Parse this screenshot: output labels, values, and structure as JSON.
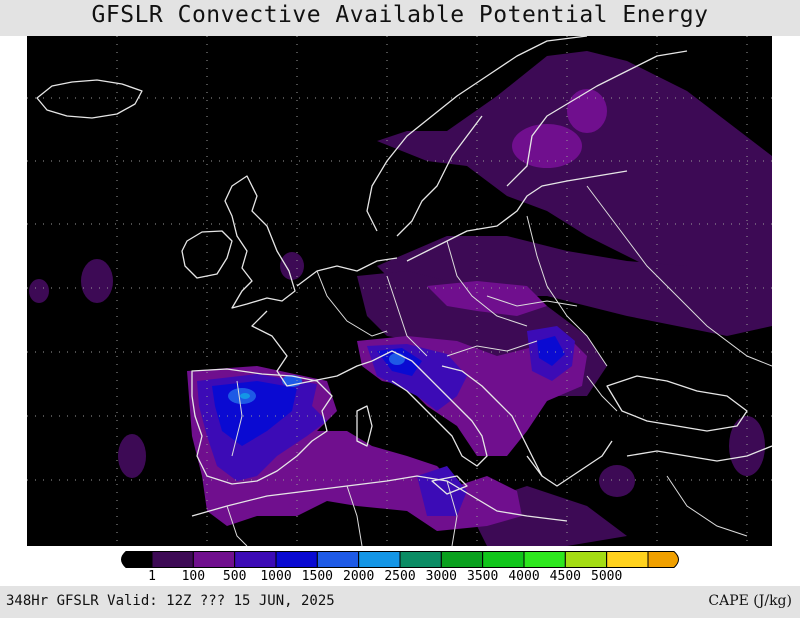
{
  "title": "GFSLR Convective Available Potential Energy",
  "footer": {
    "valid_text": "348Hr GFSLR Valid: 12Z ??? 15 JUN, 2025",
    "units_label": "CAPE (J/kg)"
  },
  "legend": {
    "colors": [
      "#000000",
      "#3d0a55",
      "#700f8e",
      "#3c0bb6",
      "#0a0ad2",
      "#1e5ae6",
      "#1496e6",
      "#0b8c64",
      "#0aa01e",
      "#11c51b",
      "#2de71e",
      "#a4dc14",
      "#ffd21e",
      "#f0a000"
    ],
    "ticks": [
      "1",
      "100",
      "500",
      "1000",
      "1500",
      "2000",
      "2500",
      "3000",
      "3500",
      "4000",
      "4500",
      "5000"
    ]
  },
  "map": {
    "background": "#000000",
    "coast_color": "#e6e6e6",
    "grid_color": "#9a9a9a"
  }
}
